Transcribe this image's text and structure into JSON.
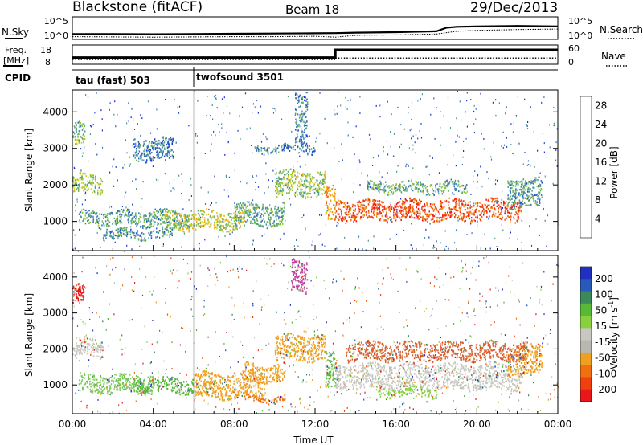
{
  "header": {
    "title": "Blackstone (fitACF)",
    "beam": "Beam 18",
    "date": "29/Dec/2013"
  },
  "chart_data": [
    {
      "type": "line",
      "id": "noise",
      "left_label": "N.Sky",
      "right_label": "N.Search",
      "left_ticks": [
        "10^5",
        "10^0"
      ],
      "right_ticks": [
        "10^5",
        "10^0"
      ],
      "series": [
        {
          "x": [
            0,
            2,
            4,
            6,
            8,
            10,
            12,
            13,
            14,
            16,
            18,
            18.5,
            19,
            20,
            22,
            24
          ],
          "y": [
            1.2,
            1.2,
            1.15,
            1.2,
            1.25,
            1.3,
            1.35,
            1.4,
            1.5,
            1.6,
            1.8,
            2.6,
            2.8,
            2.9,
            3.0,
            2.9
          ]
        },
        {
          "x": [
            0,
            2,
            4,
            6,
            8,
            10,
            12,
            13,
            14,
            16,
            18,
            18.5,
            19,
            20,
            22,
            24
          ],
          "y": [
            0.6,
            0.55,
            0.5,
            0.55,
            0.6,
            0.6,
            0.7,
            0.5,
            0.9,
            1.0,
            1.2,
            1.5,
            1.8,
            2.0,
            2.2,
            2.3
          ]
        }
      ],
      "xlim": [
        0,
        24
      ]
    },
    {
      "type": "line",
      "id": "frequency",
      "left_label": "Freq.",
      "left_unit": "[MHz]",
      "right_label": "Nave",
      "left_ticks": [
        "18",
        "8"
      ],
      "right_ticks": [
        "60",
        "0"
      ],
      "series": [
        {
          "x": [
            0,
            6,
            6,
            13,
            13,
            24
          ],
          "y": [
            11.5,
            11.5,
            11.5,
            11.5,
            15.5,
            15.5
          ]
        },
        {
          "x": [
            0,
            13,
            13,
            24
          ],
          "y": [
            10.5,
            10.5,
            11.2,
            11.2
          ]
        }
      ],
      "xlim": [
        0,
        24
      ],
      "ylim": [
        8,
        18
      ]
    },
    {
      "type": "table",
      "id": "cpid",
      "label": "CPID",
      "segments": [
        {
          "start": 0,
          "end": 6,
          "label": "tau (fast) 503"
        },
        {
          "start": 6,
          "end": 24,
          "label": "twofsound 3501"
        }
      ]
    },
    {
      "type": "heatmap",
      "id": "power",
      "ylabel": "Slant Range [km]",
      "y_ticks": [
        1000,
        2000,
        3000,
        4000
      ],
      "ylim": [
        200,
        4600
      ],
      "xlim": [
        0,
        24
      ],
      "colorbar": {
        "label": "Power [dB]",
        "ticks": [
          4,
          8,
          12,
          16,
          20,
          24,
          28
        ],
        "colors": [
          "#1630e0",
          "#2050c8",
          "#3a7ab8",
          "#4a9a90",
          "#64b45a",
          "#98c83c",
          "#d8d020",
          "#f0b018",
          "#f08a10",
          "#f06010",
          "#f03810",
          "#f01818"
        ],
        "range": [
          0,
          30
        ]
      },
      "bands": [
        {
          "t0": 0.3,
          "t1": 5.8,
          "r0": 900,
          "r1": 1300,
          "value": 9
        },
        {
          "t0": 4.5,
          "t1": 8.5,
          "r0": 800,
          "r1": 1300,
          "value": 15
        },
        {
          "t0": 8.0,
          "t1": 10.5,
          "r0": 900,
          "r1": 1500,
          "value": 10
        },
        {
          "t0": 10.0,
          "t1": 12.5,
          "r0": 1700,
          "r1": 2400,
          "value": 13
        },
        {
          "t0": 12.5,
          "t1": 13.0,
          "r0": 1000,
          "r1": 1900,
          "value": 20
        },
        {
          "t0": 13.0,
          "t1": 22.2,
          "r0": 1050,
          "r1": 1600,
          "value": 25
        },
        {
          "t0": 14.5,
          "t1": 19.5,
          "r0": 1800,
          "r1": 2100,
          "value": 10
        },
        {
          "t0": 21.5,
          "t1": 23.2,
          "r0": 1400,
          "r1": 2200,
          "value": 9
        },
        {
          "t0": 0.0,
          "t1": 1.5,
          "r0": 1800,
          "r1": 2300,
          "value": 13
        },
        {
          "t0": 0.0,
          "t1": 0.6,
          "r0": 3100,
          "r1": 3700,
          "value": 11
        },
        {
          "t0": 1.5,
          "t1": 5.0,
          "r0": 550,
          "r1": 800,
          "value": 8
        },
        {
          "t0": 3.0,
          "t1": 5.0,
          "r0": 2700,
          "r1": 3300,
          "value": 7
        },
        {
          "t0": 9.0,
          "t1": 12.0,
          "r0": 2900,
          "r1": 3100,
          "value": 7
        },
        {
          "t0": 11.0,
          "t1": 11.6,
          "r0": 3100,
          "r1": 4500,
          "value": 7
        }
      ]
    },
    {
      "type": "heatmap",
      "id": "velocity",
      "xlabel": "Time UT",
      "ylabel": "Slant Range [km]",
      "y_ticks": [
        1000,
        2000,
        3000,
        4000
      ],
      "ylim": [
        200,
        4600
      ],
      "xlim": [
        0,
        24
      ],
      "x_ticks": [
        "00:00",
        "04:00",
        "08:00",
        "12:00",
        "16:00",
        "20:00",
        "00:00"
      ],
      "colorbar": {
        "label": "Velocity [m s^-1]",
        "ticks": [
          200,
          100,
          50,
          15,
          -15,
          -50,
          -100,
          -200
        ],
        "colors": [
          "#2030c0",
          "#2a5ab8",
          "#3a8a5a",
          "#58b838",
          "#88d040",
          "#c8c8c0",
          "#b8b8b0",
          "#f0a020",
          "#f07010",
          "#f04010",
          "#e81818"
        ]
      },
      "bands": [
        {
          "t0": 0.3,
          "t1": 4.0,
          "r0": 800,
          "r1": 1300,
          "value": "#7ac858"
        },
        {
          "t0": 3.0,
          "t1": 6.0,
          "r0": 800,
          "r1": 1200,
          "value": "#58b838"
        },
        {
          "t0": 6.0,
          "t1": 9.5,
          "r0": 650,
          "r1": 1350,
          "value": "#f0a020"
        },
        {
          "t0": 8.5,
          "t1": 10.5,
          "r0": 1100,
          "r1": 1600,
          "value": "#f0a020"
        },
        {
          "t0": 10.0,
          "t1": 12.5,
          "r0": 1700,
          "r1": 2400,
          "value": "#f0a020"
        },
        {
          "t0": 12.5,
          "t1": 13.0,
          "r0": 900,
          "r1": 1900,
          "value": "#58b838"
        },
        {
          "t0": 13.0,
          "t1": 22.2,
          "r0": 900,
          "r1": 1600,
          "value": "#c8c8c0"
        },
        {
          "t0": 15.0,
          "t1": 18.0,
          "r0": 700,
          "r1": 950,
          "value": "#88d040"
        },
        {
          "t0": 0.0,
          "t1": 1.5,
          "r0": 1800,
          "r1": 2300,
          "value": "#c8c8c0"
        },
        {
          "t0": 0.0,
          "t1": 0.6,
          "r0": 3300,
          "r1": 3800,
          "value": "#e81818"
        },
        {
          "t0": 8.5,
          "t1": 10.5,
          "r0": 550,
          "r1": 700,
          "value": "#f07010"
        },
        {
          "t0": 21.5,
          "t1": 23.2,
          "r0": 1300,
          "r1": 2100,
          "value": "#f0a020"
        },
        {
          "t0": 13.5,
          "t1": 22.5,
          "r0": 1700,
          "r1": 2200,
          "value": "#d86030"
        },
        {
          "t0": 10.8,
          "t1": 11.6,
          "r0": 3600,
          "r1": 4500,
          "value": "#c040a0"
        }
      ]
    }
  ]
}
